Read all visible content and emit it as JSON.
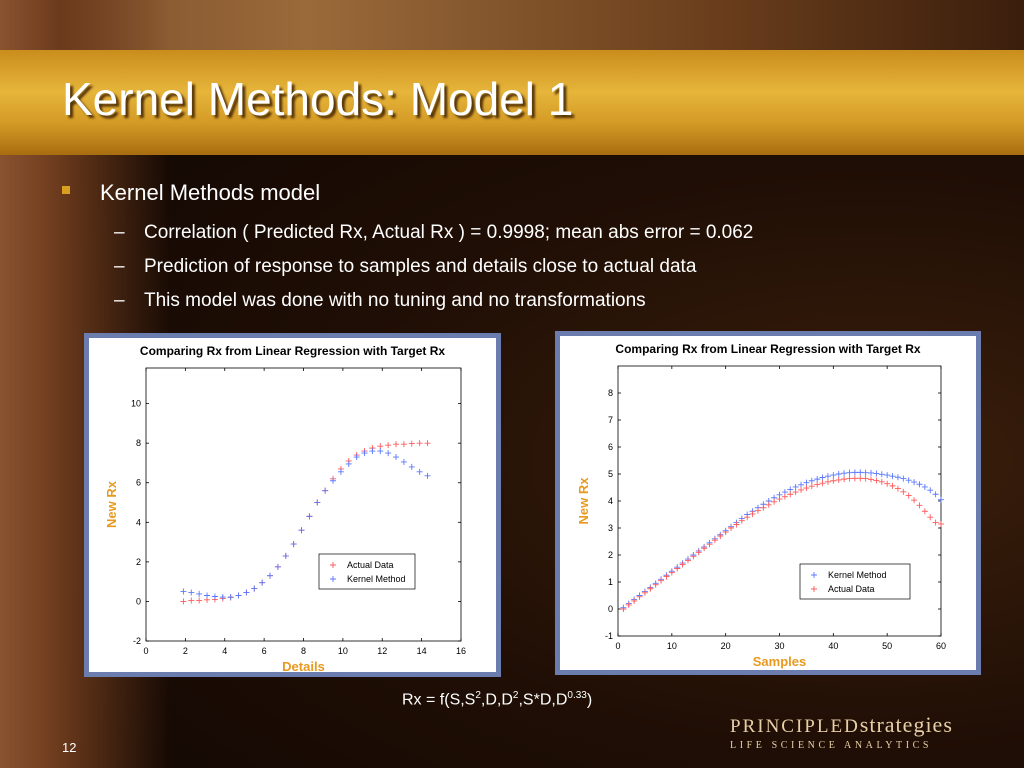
{
  "slide": {
    "title": "Kernel Methods: Model 1",
    "bullet": "Kernel Methods model",
    "sub_bullets": [
      "Correlation ( Predicted Rx, Actual Rx ) = 0.9998; mean abs error = 0.062",
      "Prediction of response to samples and details close to actual data",
      "This model was done with no tuning and no transformations"
    ],
    "dash": "–",
    "formula": {
      "prefix": "Rx = f(S,S",
      "sup1": "2",
      "mid1": ",D,D",
      "sup2": "2",
      "mid2": ",S*D,D",
      "sup3": "0.33",
      "suffix": ")"
    },
    "slide_number": "12",
    "logo": {
      "caps": "PRINCIPLED",
      "word": "strategies",
      "tagline": "LIFE SCIENCE ANALYTICS"
    },
    "colors": {
      "title_bar": "#d9a025",
      "bullet_marker": "#d9a020",
      "frame": "#6b7cae",
      "axis_label": "#e89a20",
      "actual": "#ff5a5a",
      "kernel": "#5a78ff"
    }
  },
  "chart_data": [
    {
      "type": "scatter",
      "title": "Comparing Rx from Linear Regression with Target Rx",
      "xlabel": "Details",
      "ylabel": "New Rx",
      "xlim": [
        0,
        16
      ],
      "ylim": [
        -2,
        11.8
      ],
      "xticks": [
        0,
        2,
        4,
        6,
        8,
        10,
        12,
        14,
        16
      ],
      "yticks": [
        -2,
        0,
        2,
        4,
        6,
        8,
        10
      ],
      "legend_position": "lower-right",
      "grid": false,
      "series": [
        {
          "name": "Actual Data",
          "marker": "+",
          "color": "#ff5a5a",
          "x": [
            1.9,
            2.3,
            2.7,
            3.1,
            3.5,
            3.9,
            4.3,
            4.7,
            5.1,
            5.5,
            5.9,
            6.3,
            6.7,
            7.1,
            7.5,
            7.9,
            8.3,
            8.7,
            9.1,
            9.5,
            9.9,
            10.3,
            10.7,
            11.1,
            11.5,
            11.9,
            12.3,
            12.7,
            13.1,
            13.5,
            13.9,
            14.3
          ],
          "y": [
            0.0,
            0.05,
            0.05,
            0.08,
            0.1,
            0.15,
            0.2,
            0.3,
            0.45,
            0.65,
            0.95,
            1.3,
            1.75,
            2.3,
            2.9,
            3.6,
            4.3,
            5.0,
            5.6,
            6.2,
            6.7,
            7.1,
            7.4,
            7.6,
            7.75,
            7.85,
            7.9,
            7.95,
            7.95,
            7.98,
            8.0,
            8.0
          ]
        },
        {
          "name": "Kernel Method",
          "marker": "+",
          "color": "#5a78ff",
          "x": [
            1.9,
            2.3,
            2.7,
            3.1,
            3.5,
            3.9,
            4.3,
            4.7,
            5.1,
            5.5,
            5.9,
            6.3,
            6.7,
            7.1,
            7.5,
            7.9,
            8.3,
            8.7,
            9.1,
            9.5,
            9.9,
            10.3,
            10.7,
            11.1,
            11.5,
            11.9,
            12.3,
            12.7,
            13.1,
            13.5,
            13.9,
            14.3
          ],
          "y": [
            0.5,
            0.45,
            0.38,
            0.3,
            0.25,
            0.22,
            0.22,
            0.3,
            0.45,
            0.65,
            0.95,
            1.3,
            1.75,
            2.3,
            2.9,
            3.6,
            4.3,
            5.0,
            5.6,
            6.1,
            6.55,
            6.95,
            7.3,
            7.5,
            7.6,
            7.6,
            7.5,
            7.3,
            7.05,
            6.8,
            6.55,
            6.35
          ]
        }
      ]
    },
    {
      "type": "scatter",
      "title": "Comparing Rx from Linear Regression with Target Rx",
      "xlabel": "Samples",
      "ylabel": "New Rx",
      "xlim": [
        0,
        60
      ],
      "ylim": [
        -1,
        9
      ],
      "xticks": [
        0,
        10,
        20,
        30,
        40,
        50,
        60
      ],
      "yticks": [
        -1,
        0,
        1,
        2,
        3,
        4,
        5,
        6,
        7,
        8
      ],
      "legend_position": "lower-right",
      "grid": false,
      "series": [
        {
          "name": "Kernel Method",
          "marker": "+",
          "color": "#5a78ff",
          "x": [
            1,
            2,
            3,
            4,
            5,
            6,
            7,
            8,
            9,
            10,
            11,
            12,
            13,
            14,
            15,
            16,
            17,
            18,
            19,
            20,
            21,
            22,
            23,
            24,
            25,
            26,
            27,
            28,
            29,
            30,
            31,
            32,
            33,
            34,
            35,
            36,
            37,
            38,
            39,
            40,
            41,
            42,
            43,
            44,
            45,
            46,
            47,
            48,
            49,
            50,
            51,
            52,
            53,
            54,
            55,
            56,
            57,
            58,
            59,
            60
          ],
          "y": [
            0.05,
            0.2,
            0.35,
            0.5,
            0.65,
            0.8,
            0.95,
            1.1,
            1.25,
            1.4,
            1.55,
            1.7,
            1.85,
            2.0,
            2.15,
            2.3,
            2.45,
            2.6,
            2.75,
            2.9,
            3.05,
            3.2,
            3.35,
            3.5,
            3.62,
            3.75,
            3.88,
            4.0,
            4.12,
            4.23,
            4.33,
            4.43,
            4.52,
            4.6,
            4.68,
            4.75,
            4.81,
            4.87,
            4.92,
            4.96,
            5.0,
            5.03,
            5.05,
            5.06,
            5.06,
            5.05,
            5.04,
            5.02,
            4.99,
            4.96,
            4.92,
            4.88,
            4.83,
            4.77,
            4.7,
            4.62,
            4.52,
            4.4,
            4.25,
            4.05
          ]
        },
        {
          "name": "Actual Data",
          "marker": "+",
          "color": "#ff5a5a",
          "x": [
            1,
            2,
            3,
            4,
            5,
            6,
            7,
            8,
            9,
            10,
            11,
            12,
            13,
            14,
            15,
            16,
            17,
            18,
            19,
            20,
            21,
            22,
            23,
            24,
            25,
            26,
            27,
            28,
            29,
            30,
            31,
            32,
            33,
            34,
            35,
            36,
            37,
            38,
            39,
            40,
            41,
            42,
            43,
            44,
            45,
            46,
            47,
            48,
            49,
            50,
            51,
            52,
            53,
            54,
            55,
            56,
            57,
            58,
            59,
            60
          ],
          "y": [
            0.0,
            0.15,
            0.3,
            0.45,
            0.6,
            0.75,
            0.9,
            1.05,
            1.2,
            1.35,
            1.5,
            1.65,
            1.8,
            1.95,
            2.1,
            2.25,
            2.4,
            2.55,
            2.7,
            2.85,
            3.0,
            3.13,
            3.27,
            3.4,
            3.52,
            3.64,
            3.75,
            3.86,
            3.97,
            4.07,
            4.16,
            4.25,
            4.33,
            4.41,
            4.48,
            4.55,
            4.61,
            4.66,
            4.71,
            4.75,
            4.78,
            4.81,
            4.83,
            4.84,
            4.84,
            4.83,
            4.8,
            4.76,
            4.71,
            4.64,
            4.56,
            4.46,
            4.34,
            4.2,
            4.03,
            3.84,
            3.62,
            3.4,
            3.2,
            3.15
          ]
        }
      ]
    }
  ]
}
